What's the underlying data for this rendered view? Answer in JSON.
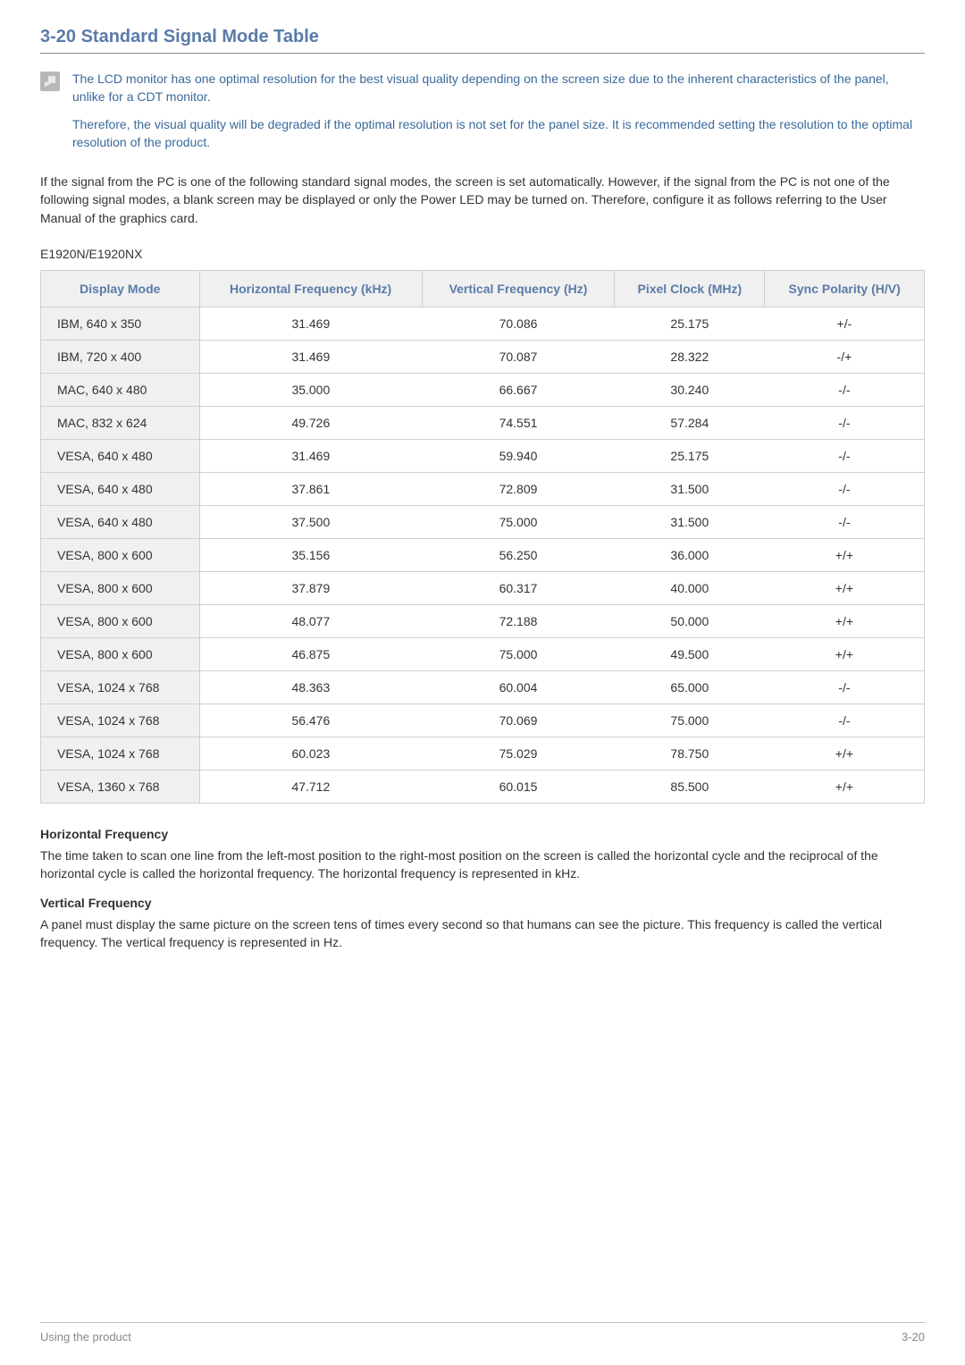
{
  "heading": {
    "text": "3-20  Standard Signal Mode Table",
    "color": "#5a7ba8",
    "fontsize": 20
  },
  "note": {
    "icon_bg": "#b8b8b8",
    "text_color": "#3a6a9a",
    "para1": "The LCD monitor has one optimal resolution for the best visual quality depending on the screen size due to the inherent characteristics of the panel, unlike for a CDT monitor.",
    "para2": "Therefore, the visual quality will be degraded if the optimal resolution is not set for the panel size. It is recommended setting the resolution to the optimal resolution of the product."
  },
  "intro": "If the signal from the PC is one of the following standard signal modes, the screen is set automatically. However, if the signal from the PC is not one of the following signal modes, a blank screen may be displayed or only the Power LED may be turned on. Therefore, configure it as follows referring to the User Manual of the graphics card.",
  "model": "E1920N/E1920NX",
  "table": {
    "header_bg": "#f0f0f0",
    "header_color": "#5a7ba8",
    "border_color": "#d0d0d0",
    "columns": [
      "Display Mode",
      "Horizontal Frequency (kHz)",
      "Vertical Frequency (Hz)",
      "Pixel Clock (MHz)",
      "Sync Polarity (H/V)"
    ],
    "rows": [
      [
        "IBM, 640 x 350",
        "31.469",
        "70.086",
        "25.175",
        "+/-"
      ],
      [
        "IBM, 720 x 400",
        "31.469",
        "70.087",
        "28.322",
        "-/+"
      ],
      [
        "MAC, 640 x 480",
        "35.000",
        "66.667",
        "30.240",
        "-/-"
      ],
      [
        "MAC, 832 x 624",
        "49.726",
        "74.551",
        "57.284",
        "-/-"
      ],
      [
        "VESA, 640 x 480",
        "31.469",
        "59.940",
        "25.175",
        "-/-"
      ],
      [
        "VESA, 640 x 480",
        "37.861",
        "72.809",
        "31.500",
        "-/-"
      ],
      [
        "VESA, 640 x 480",
        "37.500",
        "75.000",
        "31.500",
        "-/-"
      ],
      [
        "VESA, 800 x 600",
        "35.156",
        "56.250",
        "36.000",
        "+/+"
      ],
      [
        "VESA, 800 x 600",
        "37.879",
        "60.317",
        "40.000",
        "+/+"
      ],
      [
        "VESA, 800 x 600",
        "48.077",
        "72.188",
        "50.000",
        "+/+"
      ],
      [
        "VESA, 800 x 600",
        "46.875",
        "75.000",
        "49.500",
        "+/+"
      ],
      [
        "VESA, 1024 x 768",
        "48.363",
        "60.004",
        "65.000",
        "-/-"
      ],
      [
        "VESA, 1024 x 768",
        "56.476",
        "70.069",
        "75.000",
        "-/-"
      ],
      [
        "VESA, 1024 x 768",
        "60.023",
        "75.029",
        "78.750",
        "+/+"
      ],
      [
        "VESA, 1360 x 768",
        "47.712",
        "60.015",
        "85.500",
        "+/+"
      ]
    ]
  },
  "defs": {
    "hf_title": "Horizontal Frequency",
    "hf_text": "The time taken to scan one line from the left-most position to the right-most position on the screen is called the horizontal cycle and the reciprocal of the horizontal cycle is called the horizontal frequency. The horizontal frequency is represented in kHz.",
    "vf_title": "Vertical Frequency",
    "vf_text": "A panel must display the same picture on the screen tens of times every second so that humans can see the picture. This frequency is called the vertical frequency. The vertical frequency is represented in Hz."
  },
  "footer": {
    "left": "Using the product",
    "right": "3-20",
    "color": "#888888"
  }
}
